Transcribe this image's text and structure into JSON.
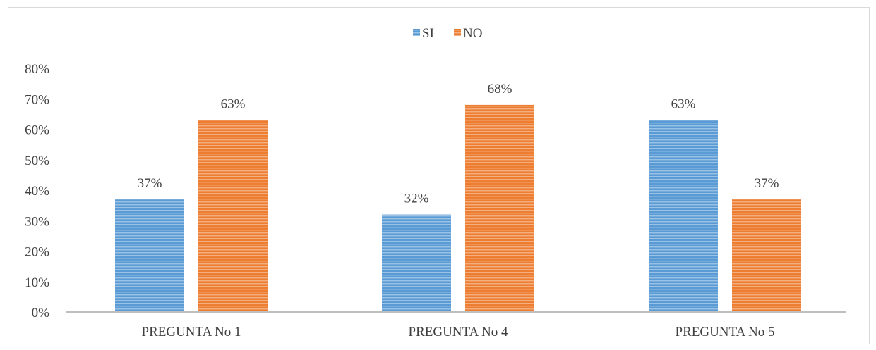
{
  "colors": {
    "si": "#5b9bd5",
    "si_stripe": "#ffffff",
    "no": "#ed7d31",
    "no_stripe": "#ffffff",
    "axis": "#bfbfbf",
    "text": "#404040"
  },
  "chart_data": {
    "type": "bar",
    "title": "",
    "xlabel": "",
    "ylabel": "",
    "categories": [
      "PREGUNTA No 1",
      "PREGUNTA No 4",
      "PREGUNTA No 5"
    ],
    "series": [
      {
        "name": "SI",
        "values": [
          37,
          32,
          63
        ],
        "labels": [
          "37%",
          "32%",
          "63%"
        ]
      },
      {
        "name": "NO",
        "values": [
          63,
          68,
          37
        ],
        "labels": [
          "63%",
          "68%",
          "37%"
        ]
      }
    ],
    "ylim": [
      0,
      80
    ],
    "yticks": [
      "0%",
      "10%",
      "20%",
      "30%",
      "40%",
      "50%",
      "60%",
      "70%",
      "80%"
    ],
    "grid": false,
    "legend": "top-center"
  }
}
